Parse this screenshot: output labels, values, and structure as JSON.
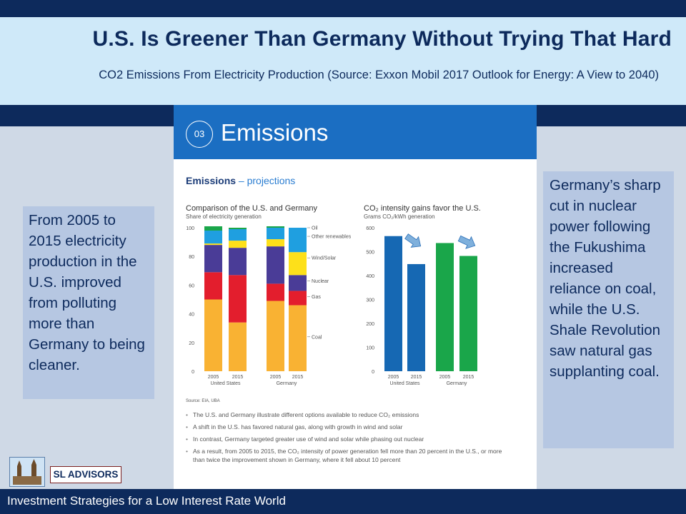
{
  "slide": {
    "title": "U.S. Is Greener Than Germany Without Trying That Hard",
    "subtitle": "CO2 Emissions From Electricity Production (Source: Exxon Mobil 2017 Outlook for Energy: A View to 2040)",
    "footer": "Investment Strategies for a Low Interest Rate World",
    "logo_text": "SL ADVISORS"
  },
  "left_note": "From 2005 to 2015 electricity production in the U.S. improved from polluting more than Germany to being cleaner.",
  "right_note": "Germany’s sharp cut in nuclear power following the Fukushima increased reliance on coal, while the U.S. Shale Revolution saw natural gas supplanting coal.",
  "panel": {
    "badge": "03",
    "section": "Emissions",
    "subhead_bold": "Emissions",
    "subhead_rest": " – projections",
    "source": "Source: EIA, UBA",
    "bullets": [
      "The U.S. and Germany illustrate different options available to reduce CO₂ emissions",
      "A shift in the U.S. has favored natural gas, along with growth in wind and solar",
      "In contrast, Germany targeted greater use of wind and solar while phasing out nuclear",
      "As a result, from 2005 to 2015, the CO₂ intensity of power generation fell more than 20 percent in the U.S., or more than twice the improvement shown in Germany, where it fell about 10 percent"
    ]
  },
  "colors": {
    "coal": "#f9b233",
    "gas": "#e31e2d",
    "nuclear": "#4a3c97",
    "wind_solar": "#fde01a",
    "other_renewables": "#1f9fe0",
    "oil": "#1aa64a",
    "us_bar": "#1668b3",
    "germany_bar": "#1aa64a"
  },
  "chart_data": [
    {
      "type": "bar",
      "stacked": true,
      "title": "Comparison of the U.S. and Germany",
      "ylabel": "Share of electricity generation",
      "ylim": [
        0,
        100
      ],
      "yticks": [
        0,
        20,
        40,
        60,
        80,
        100
      ],
      "categories": [
        "2005",
        "2015",
        "2005",
        "2015"
      ],
      "groups": [
        "United States",
        "Germany"
      ],
      "series": [
        {
          "name": "Coal",
          "values": [
            50,
            34,
            49,
            46
          ]
        },
        {
          "name": "Gas",
          "values": [
            19,
            33,
            12,
            10
          ]
        },
        {
          "name": "Nuclear",
          "values": [
            19,
            19,
            26,
            11
          ]
        },
        {
          "name": "Wind/Solar",
          "values": [
            1,
            5,
            5,
            16
          ]
        },
        {
          "name": "Other renewables",
          "values": [
            9,
            8,
            8,
            17
          ]
        },
        {
          "name": "Oil",
          "values": [
            3,
            1,
            1,
            0
          ]
        }
      ]
    },
    {
      "type": "bar",
      "title": "CO₂ intensity gains favor the U.S.",
      "ylabel": "Grams CO₂/kWh generation",
      "ylim": [
        0,
        600
      ],
      "yticks": [
        0,
        100,
        200,
        300,
        400,
        500,
        600
      ],
      "categories": [
        "2005",
        "2015",
        "2005",
        "2015"
      ],
      "groups": [
        "United States",
        "Germany"
      ],
      "values": [
        565,
        448,
        536,
        482
      ]
    }
  ]
}
